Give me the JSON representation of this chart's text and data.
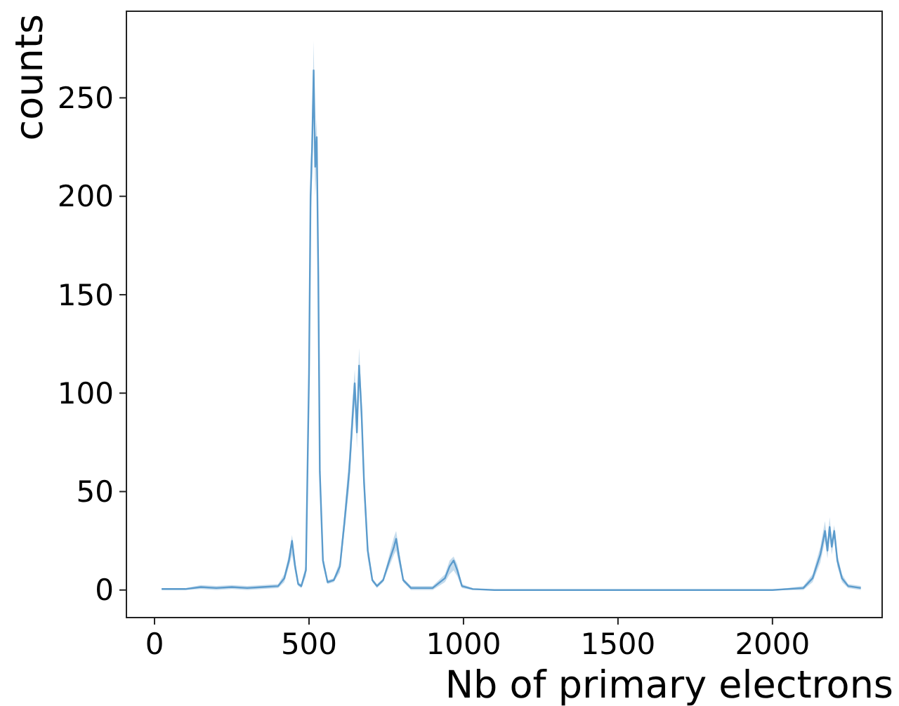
{
  "chart_data": {
    "type": "line",
    "xlabel": "Nb of primary electrons",
    "ylabel": "counts",
    "xlim": [
      -91,
      2355
    ],
    "ylim": [
      -14,
      294
    ],
    "xticks": [
      0,
      500,
      1000,
      1500,
      2000
    ],
    "yticks": [
      0,
      50,
      100,
      150,
      200,
      250
    ],
    "grid": false,
    "marker": "none",
    "line_style": "solid",
    "series": [
      {
        "color": "#5b9bcc",
        "x": [
          23,
          100,
          150,
          200,
          250,
          300,
          350,
          400,
          420,
          435,
          445,
          455,
          465,
          475,
          490,
          500,
          505,
          510,
          515,
          520,
          525,
          530,
          535,
          545,
          560,
          580,
          600,
          615,
          630,
          640,
          648,
          655,
          662,
          670,
          678,
          690,
          705,
          720,
          740,
          760,
          775,
          782,
          790,
          805,
          830,
          900,
          940,
          955,
          968,
          980,
          995,
          1030,
          1100,
          1300,
          1600,
          2000,
          2100,
          2130,
          2155,
          2170,
          2178,
          2185,
          2192,
          2200,
          2210,
          2225,
          2245,
          2286
        ],
        "values": [
          0.5,
          0.5,
          1.5,
          1,
          1.5,
          1,
          1.5,
          2,
          6,
          15,
          25,
          12,
          3,
          2,
          10,
          110,
          200,
          225,
          264,
          215,
          230,
          160,
          60,
          15,
          4,
          5,
          12,
          35,
          60,
          85,
          105,
          80,
          114,
          90,
          55,
          20,
          5,
          2,
          5,
          15,
          22,
          26,
          18,
          5,
          1,
          1,
          6,
          12,
          15,
          10,
          2,
          0.5,
          0,
          0,
          0,
          0,
          1,
          6,
          18,
          30,
          20,
          32,
          22,
          30,
          15,
          6,
          2,
          1
        ],
        "lower": [
          0,
          0,
          0.5,
          0,
          0.5,
          0,
          0.5,
          1,
          4,
          12,
          18,
          9,
          2,
          1,
          7,
          95,
          185,
          210,
          250,
          200,
          215,
          145,
          52,
          12,
          3,
          4,
          9,
          30,
          52,
          78,
          98,
          72,
          105,
          82,
          48,
          16,
          4,
          1,
          4,
          12,
          18,
          20,
          14,
          4,
          0,
          0,
          4,
          8,
          10,
          7,
          1,
          0,
          0,
          0,
          0,
          0,
          0,
          4,
          14,
          25,
          16,
          28,
          18,
          26,
          12,
          4,
          1,
          0
        ],
        "upper": [
          1,
          1,
          2.5,
          2,
          2.5,
          2,
          2.5,
          3,
          8,
          18,
          28,
          15,
          4,
          3,
          13,
          120,
          215,
          235,
          279,
          228,
          240,
          170,
          68,
          18,
          5,
          6,
          15,
          40,
          68,
          95,
          112,
          88,
          123,
          98,
          62,
          24,
          6,
          3,
          6,
          18,
          27,
          30,
          22,
          6,
          2,
          2,
          8,
          15,
          17,
          13,
          3,
          1,
          0,
          0,
          0,
          0,
          2,
          8,
          22,
          35,
          24,
          37,
          26,
          33,
          18,
          8,
          3,
          2
        ]
      }
    ]
  }
}
